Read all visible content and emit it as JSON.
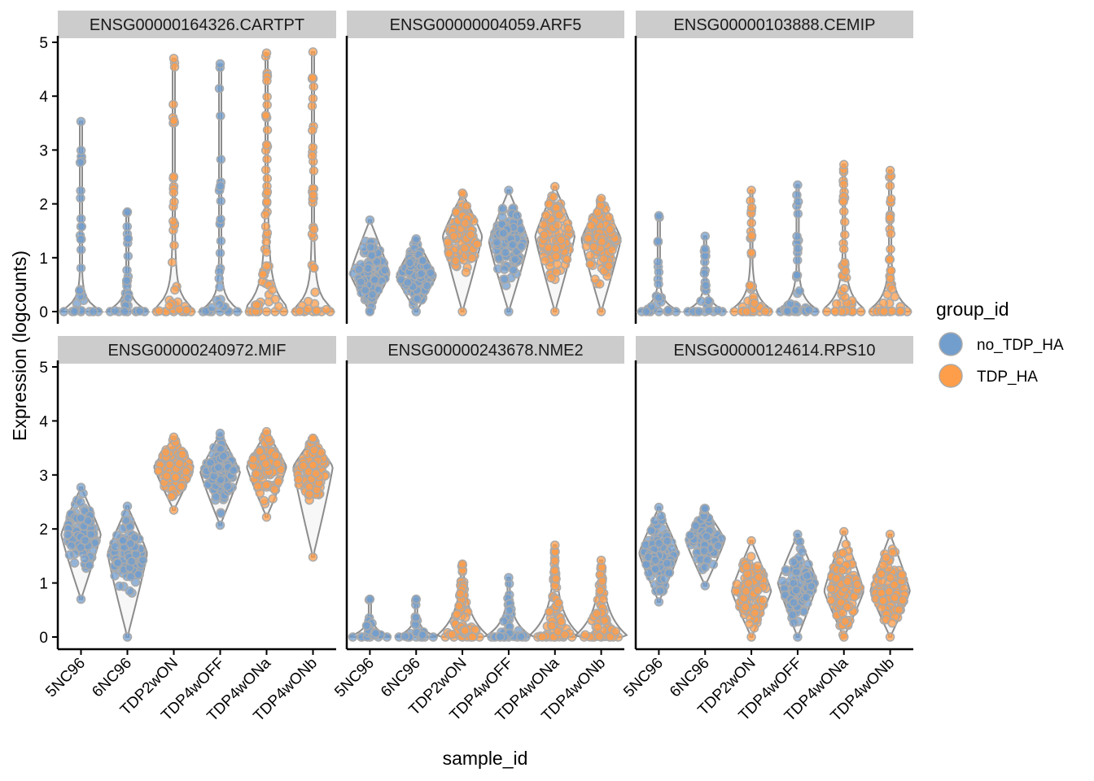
{
  "chart_data": {
    "type": "violin",
    "xlabel": "sample_id",
    "ylabel": "Expression (logcounts)",
    "ylim": [
      0,
      5
    ],
    "yticks": [
      "0",
      "1",
      "2",
      "3",
      "4",
      "5"
    ],
    "categories": [
      "5NC96",
      "6NC96",
      "TDP2wON",
      "TDP4wOFF",
      "TDP4wONa",
      "TDP4wONb"
    ],
    "sample_groups": [
      "no_TDP_HA",
      "no_TDP_HA",
      "TDP_HA",
      "no_TDP_HA",
      "TDP_HA",
      "TDP_HA"
    ],
    "legend": {
      "title": "group_id",
      "position": "right",
      "entries": [
        {
          "label": "no_TDP_HA",
          "color": "#729ECE"
        },
        {
          "label": "TDP_HA",
          "color": "#FF9E4A"
        }
      ]
    },
    "facets": [
      {
        "title": "ENSG00000164326.CARTPT",
        "shape": "zero",
        "max": [
          3.53,
          1.85,
          4.7,
          4.6,
          4.8,
          4.82
        ],
        "density": [
          0.25,
          0.25,
          0.45,
          0.3,
          0.7,
          0.45
        ]
      },
      {
        "title": "ENSG00000004059.ARF5",
        "shape": "body",
        "max": [
          1.7,
          1.35,
          2.2,
          2.25,
          2.32,
          2.1
        ],
        "min": [
          0,
          0,
          0,
          0,
          0,
          0
        ],
        "center": [
          0.7,
          0.65,
          1.4,
          1.3,
          1.4,
          1.35
        ],
        "spread": [
          0.45,
          0.4,
          0.5,
          0.5,
          0.55,
          0.5
        ]
      },
      {
        "title": "ENSG00000103888.CEMIP",
        "shape": "zero",
        "max": [
          1.78,
          1.4,
          2.25,
          2.35,
          2.73,
          2.62
        ],
        "density": [
          0.2,
          0.2,
          0.4,
          0.35,
          0.5,
          0.45
        ]
      },
      {
        "title": "ENSG00000240972.MIF",
        "shape": "body",
        "max": [
          2.77,
          2.42,
          3.7,
          3.77,
          3.8,
          3.68
        ],
        "min": [
          0.7,
          0,
          2.35,
          2.07,
          2.22,
          1.48
        ],
        "center": [
          1.9,
          1.55,
          3.15,
          3.05,
          3.15,
          3.15
        ],
        "spread": [
          0.45,
          0.45,
          0.4,
          0.45,
          0.45,
          0.45
        ]
      },
      {
        "title": "ENSG00000243678.NME2",
        "shape": "zero",
        "max": [
          0.7,
          0.7,
          1.35,
          1.1,
          1.7,
          1.42
        ],
        "density": [
          0.15,
          0.15,
          0.9,
          0.5,
          0.9,
          0.95
        ]
      },
      {
        "title": "ENSG00000124614.RPS10",
        "shape": "body",
        "max": [
          2.4,
          2.38,
          1.78,
          1.9,
          1.95,
          1.9
        ],
        "min": [
          0.65,
          0.95,
          0,
          0,
          0,
          0
        ],
        "center": [
          1.55,
          1.8,
          0.85,
          1.0,
          0.85,
          0.85
        ],
        "spread": [
          0.45,
          0.4,
          0.45,
          0.5,
          0.5,
          0.5
        ]
      }
    ]
  }
}
